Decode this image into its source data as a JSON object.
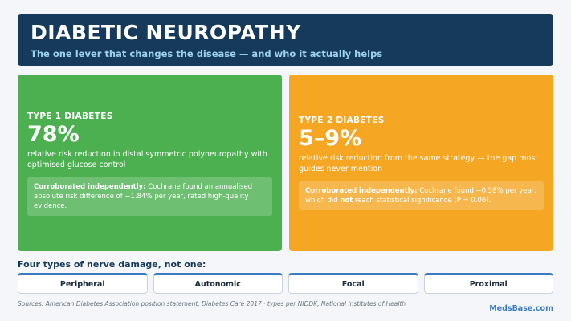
{
  "header": {
    "title": "DIABETIC NEUROPATHY",
    "subtitle": "The one lever that changes the disease — and who it actually helps"
  },
  "cards": {
    "type1": {
      "label": "TYPE 1 DIABETES",
      "stat": "78%",
      "desc": "relative risk reduction in distal symmetric polyneuropathy with optimised glucose control",
      "note_lead": "Corroborated independently:",
      "note_body": " Cochrane found an annualised absolute risk difference of −1.84% per year, rated high-quality evidence.",
      "color": "#4caf50"
    },
    "type2": {
      "label": "TYPE 2 DIABETES",
      "stat": "5–9%",
      "desc": "relative risk reduction from the same strategy — the gap most guides never mention",
      "note_lead": "Corroborated independently:",
      "note_pre": " Cochrane found −0.58% per year, which did ",
      "note_emph": "not",
      "note_post": " reach statistical significance (P = 0.06).",
      "color": "#f5a623"
    }
  },
  "types": {
    "title": "Four types of nerve damage, not one:",
    "items": [
      "Peripheral",
      "Autonomic",
      "Focal",
      "Proximal"
    ]
  },
  "footer": {
    "sources": "Sources: American Diabetes Association position statement, Diabetes Care 2017 · types per NIDDK, National Institutes of Health",
    "brand": "MedsBase.com"
  }
}
